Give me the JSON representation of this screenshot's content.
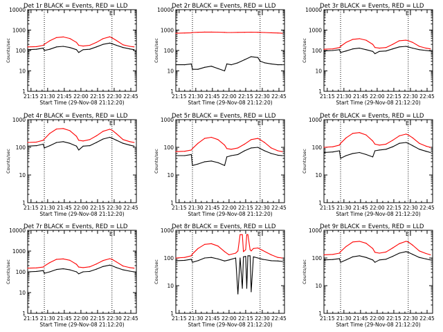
{
  "colors": {
    "events": "#000000",
    "lld": "#ff0000",
    "background": "#ffffff",
    "axes": "#000000"
  },
  "common": {
    "y_label": "Counts/sec",
    "x_label": "Start Time (29-Nov-08 21:12:20)",
    "x_ticks": [
      "21:15",
      "21:30",
      "21:45",
      "22:00",
      "22:15",
      "22:30",
      "22:45"
    ],
    "y_ticks": [
      "1",
      "10",
      "100",
      "1000",
      "10000"
    ],
    "marker_label": "E",
    "dotted_times": [
      "21:27",
      "22:28"
    ]
  },
  "chart_data": [
    {
      "type": "line",
      "title": "Det 1r BLACK = Events, RED = LLD",
      "x": [
        "21:12",
        "21:20",
        "21:26",
        "21:27",
        "21:32",
        "21:38",
        "21:44",
        "21:50",
        "21:56",
        "21:58",
        "22:02",
        "22:08",
        "22:14",
        "22:20",
        "22:26",
        "22:28",
        "22:32",
        "22:38",
        "22:44",
        "22:48"
      ],
      "series": [
        {
          "name": "LLD",
          "color": "#ff0000",
          "values": [
            150,
            155,
            180,
            200,
            300,
            430,
            460,
            390,
            250,
            180,
            165,
            180,
            250,
            380,
            470,
            420,
            310,
            190,
            160,
            150
          ]
        },
        {
          "name": "Events",
          "color": "#000000",
          "values": [
            110,
            115,
            130,
            100,
            115,
            150,
            160,
            140,
            110,
            80,
            110,
            115,
            150,
            200,
            230,
            215,
            180,
            140,
            120,
            110
          ]
        }
      ],
      "xlim": [
        "21:12",
        "22:50"
      ],
      "ylim": [
        1,
        10000
      ],
      "yscale": "log",
      "grid": false,
      "marker_time": "22:30"
    },
    {
      "type": "line",
      "title": "Det 2r BLACK = Events, RED = LLD",
      "x": [
        "21:12",
        "21:20",
        "21:26",
        "21:27",
        "21:32",
        "21:38",
        "21:44",
        "21:50",
        "21:56",
        "21:58",
        "22:02",
        "22:08",
        "22:14",
        "22:20",
        "22:26",
        "22:28",
        "22:32",
        "22:38",
        "22:44",
        "22:48"
      ],
      "series": [
        {
          "name": "LLD",
          "color": "#ff0000",
          "values": [
            700,
            720,
            740,
            760,
            780,
            800,
            800,
            790,
            770,
            760,
            760,
            770,
            780,
            790,
            780,
            770,
            760,
            740,
            720,
            700
          ]
        },
        {
          "name": "Events",
          "color": "#000000",
          "values": [
            20,
            20,
            22,
            12,
            12,
            15,
            17,
            13,
            10,
            22,
            20,
            25,
            35,
            50,
            45,
            30,
            25,
            22,
            20,
            20
          ]
        }
      ],
      "xlim": [
        "21:12",
        "22:50"
      ],
      "ylim": [
        1,
        10000
      ],
      "yscale": "log",
      "grid": false,
      "marker_time": "22:30"
    },
    {
      "type": "line",
      "title": "Det 3r BLACK = Events, RED = LLD",
      "x": [
        "21:12",
        "21:20",
        "21:26",
        "21:27",
        "21:32",
        "21:38",
        "21:44",
        "21:50",
        "21:56",
        "21:58",
        "22:02",
        "22:08",
        "22:14",
        "22:20",
        "22:26",
        "22:28",
        "22:32",
        "22:38",
        "22:44",
        "22:48"
      ],
      "series": [
        {
          "name": "LLD",
          "color": "#ff0000",
          "values": [
            115,
            120,
            140,
            160,
            250,
            350,
            380,
            320,
            200,
            140,
            130,
            140,
            200,
            300,
            320,
            300,
            250,
            160,
            130,
            120
          ]
        },
        {
          "name": "Events",
          "color": "#000000",
          "values": [
            95,
            100,
            110,
            80,
            95,
            120,
            130,
            110,
            90,
            70,
            90,
            95,
            120,
            150,
            160,
            150,
            130,
            110,
            100,
            95
          ]
        }
      ],
      "xlim": [
        "21:12",
        "22:50"
      ],
      "ylim": [
        1,
        10000
      ],
      "yscale": "log",
      "grid": false,
      "marker_time": "22:30"
    },
    {
      "type": "line",
      "title": "Det 4r BLACK = Events, RED = LLD",
      "x": [
        "21:12",
        "21:20",
        "21:26",
        "21:27",
        "21:32",
        "21:38",
        "21:44",
        "21:50",
        "21:56",
        "21:58",
        "22:02",
        "22:08",
        "22:14",
        "22:20",
        "22:26",
        "22:28",
        "22:32",
        "22:38",
        "22:44",
        "22:48"
      ],
      "series": [
        {
          "name": "LLD",
          "color": "#ff0000",
          "values": [
            150,
            155,
            180,
            200,
            320,
            460,
            480,
            400,
            250,
            180,
            170,
            190,
            260,
            380,
            450,
            420,
            310,
            190,
            160,
            150
          ]
        },
        {
          "name": "Events",
          "color": "#000000",
          "values": [
            110,
            115,
            130,
            95,
            115,
            150,
            160,
            140,
            110,
            80,
            110,
            115,
            150,
            200,
            230,
            215,
            180,
            140,
            120,
            110
          ]
        }
      ],
      "xlim": [
        "21:12",
        "22:50"
      ],
      "ylim": [
        1,
        1000
      ],
      "yscale": "log",
      "grid": false,
      "marker_time": "22:30"
    },
    {
      "type": "line",
      "title": "Det 5r BLACK = Events, RED = LLD",
      "x": [
        "21:12",
        "21:20",
        "21:26",
        "21:27",
        "21:32",
        "21:38",
        "21:44",
        "21:50",
        "21:56",
        "21:58",
        "22:02",
        "22:08",
        "22:14",
        "22:20",
        "22:26",
        "22:28",
        "22:32",
        "22:38",
        "22:44",
        "22:48"
      ],
      "series": [
        {
          "name": "LLD",
          "color": "#ff0000",
          "values": [
            70,
            72,
            80,
            90,
            140,
            210,
            230,
            190,
            120,
            90,
            85,
            95,
            130,
            190,
            210,
            190,
            150,
            95,
            75,
            70
          ]
        },
        {
          "name": "Events",
          "color": "#000000",
          "values": [
            50,
            50,
            55,
            22,
            25,
            30,
            32,
            28,
            22,
            45,
            50,
            55,
            75,
            95,
            100,
            90,
            75,
            60,
            52,
            50
          ]
        }
      ],
      "xlim": [
        "21:12",
        "22:50"
      ],
      "ylim": [
        1,
        1000
      ],
      "yscale": "log",
      "grid": false,
      "marker_time": "22:30"
    },
    {
      "type": "line",
      "title": "Det 6r BLACK = Events, RED = LLD",
      "x": [
        "21:12",
        "21:20",
        "21:26",
        "21:27",
        "21:32",
        "21:38",
        "21:44",
        "21:50",
        "21:56",
        "21:58",
        "22:02",
        "22:08",
        "22:14",
        "22:20",
        "22:26",
        "22:28",
        "22:32",
        "22:38",
        "22:44",
        "22:48"
      ],
      "series": [
        {
          "name": "LLD",
          "color": "#ff0000",
          "values": [
            100,
            105,
            120,
            140,
            220,
            320,
            340,
            280,
            170,
            130,
            120,
            130,
            180,
            260,
            300,
            280,
            220,
            140,
            110,
            100
          ]
        },
        {
          "name": "Events",
          "color": "#000000",
          "values": [
            65,
            68,
            75,
            40,
            50,
            60,
            65,
            55,
            45,
            75,
            80,
            85,
            105,
            140,
            150,
            140,
            115,
            85,
            72,
            65
          ]
        }
      ],
      "xlim": [
        "21:12",
        "22:50"
      ],
      "ylim": [
        1,
        1000
      ],
      "yscale": "log",
      "grid": false,
      "marker_time": "22:30"
    },
    {
      "type": "line",
      "title": "Det 7r BLACK = Events, RED = LLD",
      "x": [
        "21:12",
        "21:20",
        "21:26",
        "21:27",
        "21:32",
        "21:38",
        "21:44",
        "21:50",
        "21:56",
        "21:58",
        "22:02",
        "22:08",
        "22:14",
        "22:20",
        "22:26",
        "22:28",
        "22:32",
        "22:38",
        "22:44",
        "22:48"
      ],
      "series": [
        {
          "name": "LLD",
          "color": "#ff0000",
          "values": [
            150,
            155,
            170,
            190,
            280,
            400,
            420,
            360,
            230,
            170,
            160,
            175,
            240,
            350,
            430,
            400,
            300,
            190,
            160,
            150
          ]
        },
        {
          "name": "Events",
          "color": "#000000",
          "values": [
            100,
            105,
            115,
            85,
            100,
            130,
            140,
            125,
            100,
            80,
            100,
            105,
            135,
            180,
            210,
            195,
            160,
            125,
            108,
            100
          ]
        }
      ],
      "xlim": [
        "21:12",
        "22:50"
      ],
      "ylim": [
        1,
        10000
      ],
      "yscale": "log",
      "grid": false,
      "marker_time": "22:30"
    },
    {
      "type": "line",
      "title": "Det 8r BLACK = Events, RED = LLD",
      "x": [
        "21:12",
        "21:20",
        "21:26",
        "21:27",
        "21:32",
        "21:38",
        "21:44",
        "21:50",
        "21:56",
        "22:00",
        "22:06",
        "22:08",
        "22:10",
        "22:12",
        "22:13",
        "22:15",
        "22:16",
        "22:17",
        "22:19",
        "22:20",
        "22:22",
        "22:26",
        "22:30",
        "22:38",
        "22:44",
        "22:48"
      ],
      "series": [
        {
          "name": "LLD",
          "color": "#ff0000",
          "values": [
            100,
            105,
            120,
            140,
            220,
            310,
            330,
            270,
            170,
            130,
            150,
            180,
            700,
            700,
            170,
            200,
            700,
            700,
            200,
            180,
            220,
            230,
            190,
            130,
            105,
            100
          ]
        },
        {
          "name": "Events",
          "color": "#000000",
          "values": [
            80,
            82,
            90,
            70,
            80,
            100,
            105,
            92,
            78,
            85,
            100,
            5,
            100,
            8,
            110,
            115,
            8,
            120,
            120,
            6,
            110,
            100,
            90,
            80,
            78,
            75
          ]
        }
      ],
      "xlim": [
        "21:12",
        "22:50"
      ],
      "ylim": [
        1,
        1000
      ],
      "yscale": "log",
      "grid": false,
      "marker_time": "22:30"
    },
    {
      "type": "line",
      "title": "Det 9r BLACK = Events, RED = LLD",
      "x": [
        "21:12",
        "21:20",
        "21:26",
        "21:27",
        "21:32",
        "21:38",
        "21:44",
        "21:50",
        "21:56",
        "21:58",
        "22:02",
        "22:08",
        "22:14",
        "22:20",
        "22:26",
        "22:28",
        "22:32",
        "22:38",
        "22:44",
        "22:48"
      ],
      "series": [
        {
          "name": "LLD",
          "color": "#ff0000",
          "values": [
            130,
            135,
            150,
            170,
            260,
            380,
            400,
            340,
            220,
            160,
            150,
            165,
            230,
            330,
            400,
            380,
            290,
            180,
            145,
            130
          ]
        },
        {
          "name": "Events",
          "color": "#000000",
          "values": [
            85,
            88,
            95,
            70,
            85,
            110,
            120,
            105,
            85,
            70,
            85,
            90,
            115,
            150,
            170,
            160,
            135,
            105,
            92,
            85
          ]
        }
      ],
      "xlim": [
        "21:12",
        "22:50"
      ],
      "ylim": [
        1,
        1000
      ],
      "yscale": "log",
      "grid": false,
      "marker_time": "22:30"
    }
  ]
}
